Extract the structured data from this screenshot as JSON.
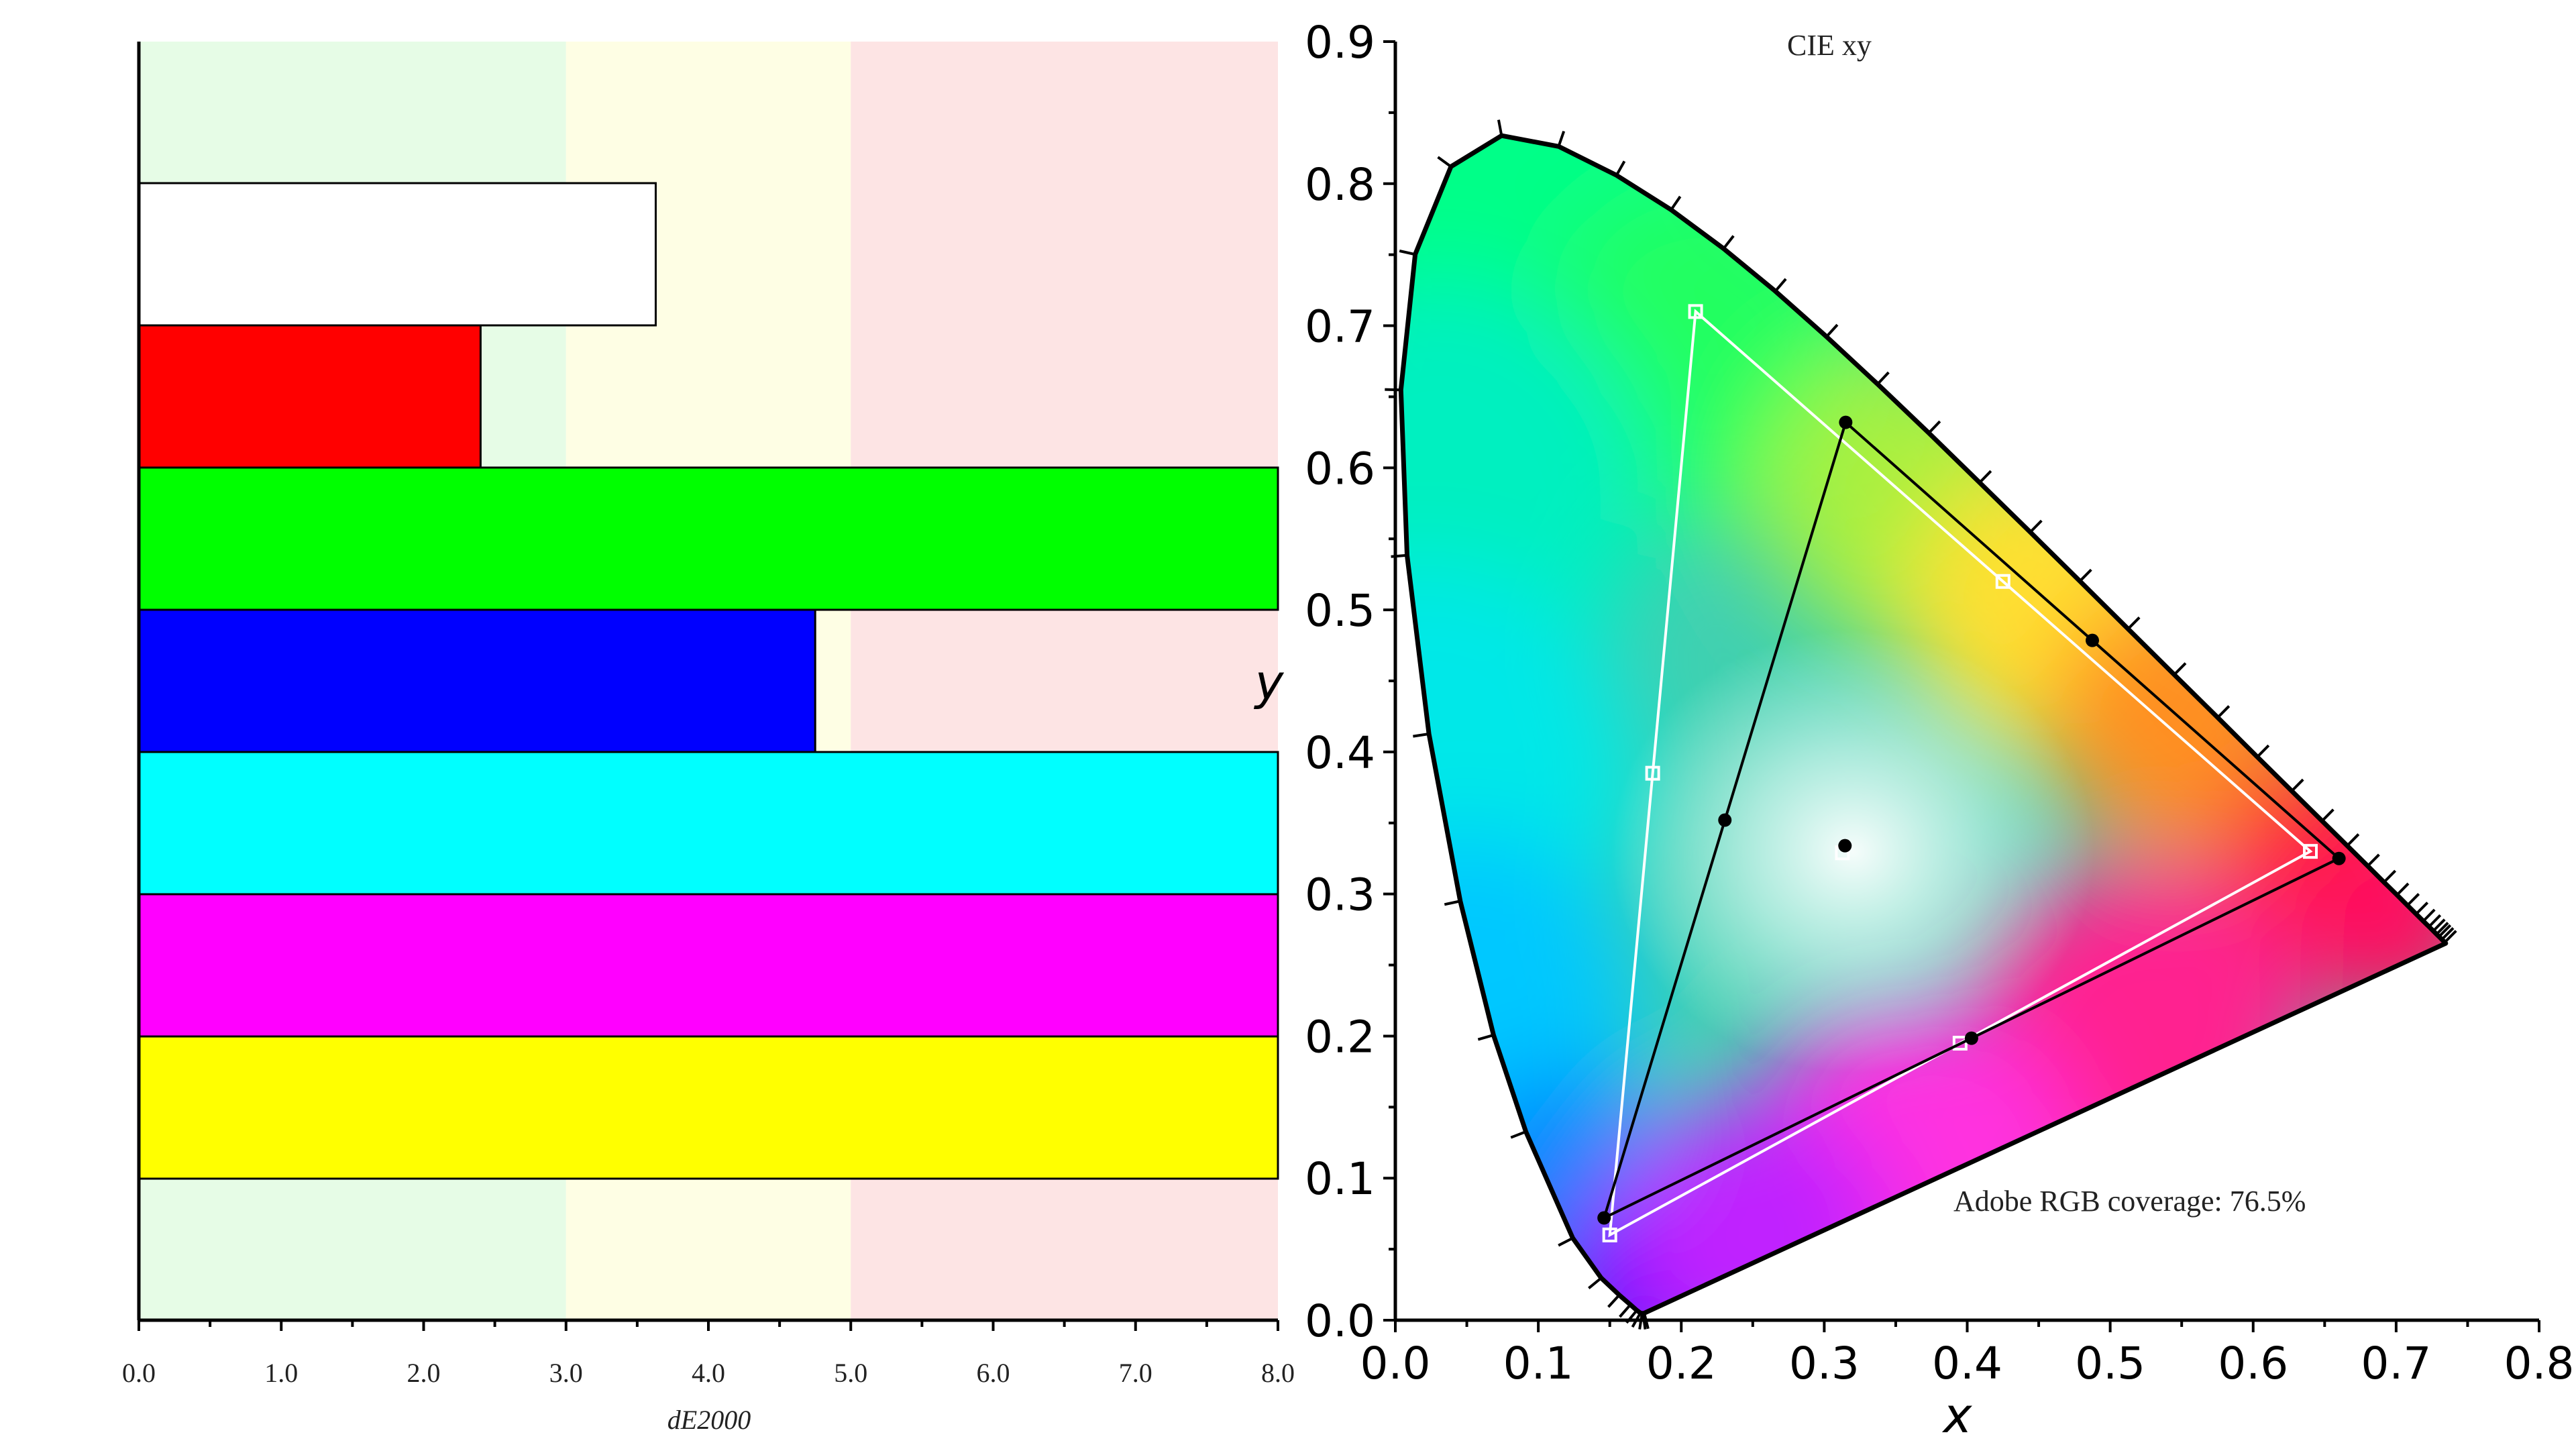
{
  "chart_data": [
    {
      "type": "bar",
      "orientation": "horizontal",
      "xlabel": "dE2000",
      "ylabel": "",
      "xlim": [
        0,
        8
      ],
      "x_ticks": [
        "0.0",
        "1.0",
        "2.0",
        "3.0",
        "4.0",
        "5.0",
        "6.0",
        "7.0",
        "8.0"
      ],
      "x_ticks_values": [
        0,
        1,
        2,
        3,
        4,
        5,
        6,
        7,
        8
      ],
      "zones": [
        {
          "from": 0,
          "to": 3,
          "color": "#e6fce6"
        },
        {
          "from": 3,
          "to": 5,
          "color": "#fefee4"
        },
        {
          "from": 5,
          "to": 8,
          "color": "#fde4e4"
        }
      ],
      "categories": [
        "White",
        "Red",
        "Green",
        "Blue",
        "Cyan",
        "Magenta",
        "Yellow"
      ],
      "values": [
        3.63,
        2.4,
        8.0,
        4.75,
        8.0,
        8.0,
        8.0
      ],
      "bar_colors": [
        "#ffffff",
        "#ff0000",
        "#00ff00",
        "#0000ff",
        "#00ffff",
        "#ff00ff",
        "#ffff00"
      ],
      "grid": false
    },
    {
      "type": "scatter",
      "title": "CIE xy",
      "xlabel": "x",
      "ylabel": "y",
      "xlim": [
        0,
        0.8
      ],
      "ylim": [
        0,
        0.9
      ],
      "x_ticks": [
        "0.0",
        "0.1",
        "0.2",
        "0.3",
        "0.4",
        "0.5",
        "0.6",
        "0.7",
        "0.8"
      ],
      "x_ticks_values": [
        0,
        0.1,
        0.2,
        0.3,
        0.4,
        0.5,
        0.6,
        0.7,
        0.8
      ],
      "y_ticks": [
        "0.0",
        "0.1",
        "0.2",
        "0.3",
        "0.4",
        "0.5",
        "0.6",
        "0.7",
        "0.8",
        "0.9"
      ],
      "y_ticks_values": [
        0,
        0.1,
        0.2,
        0.3,
        0.4,
        0.5,
        0.6,
        0.7,
        0.8,
        0.9
      ],
      "annotation": "Adobe RGB coverage: 76.5%",
      "spectral_locus": [
        [
          0.1741,
          0.005
        ],
        [
          0.1738,
          0.0049
        ],
        [
          0.1733,
          0.0048
        ],
        [
          0.1726,
          0.0048
        ],
        [
          0.1714,
          0.0051
        ],
        [
          0.1689,
          0.0069
        ],
        [
          0.1644,
          0.0109
        ],
        [
          0.1566,
          0.0177
        ],
        [
          0.144,
          0.0297
        ],
        [
          0.1241,
          0.0578
        ],
        [
          0.0913,
          0.1327
        ],
        [
          0.0687,
          0.2007
        ],
        [
          0.0454,
          0.295
        ],
        [
          0.0235,
          0.4127
        ],
        [
          0.0082,
          0.5384
        ],
        [
          0.0039,
          0.6548
        ],
        [
          0.0139,
          0.7502
        ],
        [
          0.0389,
          0.812
        ],
        [
          0.0743,
          0.8338
        ],
        [
          0.1142,
          0.8262
        ],
        [
          0.1547,
          0.8059
        ],
        [
          0.1929,
          0.7816
        ],
        [
          0.2296,
          0.7543
        ],
        [
          0.2658,
          0.7243
        ],
        [
          0.3016,
          0.6923
        ],
        [
          0.3373,
          0.6589
        ],
        [
          0.3731,
          0.6245
        ],
        [
          0.4087,
          0.5896
        ],
        [
          0.4441,
          0.5547
        ],
        [
          0.4788,
          0.5202
        ],
        [
          0.5125,
          0.4866
        ],
        [
          0.5448,
          0.4544
        ],
        [
          0.5752,
          0.4242
        ],
        [
          0.6029,
          0.3965
        ],
        [
          0.627,
          0.3725
        ],
        [
          0.6482,
          0.3514
        ],
        [
          0.6658,
          0.334
        ],
        [
          0.6801,
          0.3197
        ],
        [
          0.6915,
          0.3083
        ],
        [
          0.7006,
          0.2993
        ],
        [
          0.7079,
          0.292
        ],
        [
          0.714,
          0.2859
        ],
        [
          0.719,
          0.2809
        ],
        [
          0.723,
          0.277
        ],
        [
          0.726,
          0.274
        ],
        [
          0.7283,
          0.2717
        ],
        [
          0.73,
          0.27
        ],
        [
          0.7311,
          0.2689
        ],
        [
          0.732,
          0.268
        ],
        [
          0.7327,
          0.2673
        ],
        [
          0.7334,
          0.2666
        ],
        [
          0.734,
          0.266
        ],
        [
          0.7344,
          0.2656
        ],
        [
          0.7346,
          0.2654
        ],
        [
          0.7347,
          0.2653
        ]
      ],
      "locus_tick_points": [
        [
          0.1741,
          0.005
        ],
        [
          0.1733,
          0.0048
        ],
        [
          0.1726,
          0.0048
        ],
        [
          0.1714,
          0.0051
        ],
        [
          0.1689,
          0.0069
        ],
        [
          0.1644,
          0.0109
        ],
        [
          0.1566,
          0.0177
        ],
        [
          0.144,
          0.0297
        ],
        [
          0.1241,
          0.0578
        ],
        [
          0.0913,
          0.1327
        ],
        [
          0.0687,
          0.2007
        ],
        [
          0.0454,
          0.295
        ],
        [
          0.0235,
          0.4127
        ],
        [
          0.0082,
          0.5384
        ],
        [
          0.0039,
          0.6548
        ],
        [
          0.0139,
          0.7502
        ],
        [
          0.0389,
          0.812
        ],
        [
          0.0743,
          0.8338
        ],
        [
          0.1142,
          0.8262
        ],
        [
          0.1547,
          0.8059
        ],
        [
          0.1929,
          0.7816
        ],
        [
          0.2296,
          0.7543
        ],
        [
          0.2658,
          0.7243
        ],
        [
          0.3016,
          0.6923
        ],
        [
          0.3373,
          0.6589
        ],
        [
          0.3731,
          0.6245
        ],
        [
          0.4087,
          0.5896
        ],
        [
          0.4441,
          0.5547
        ],
        [
          0.4788,
          0.5202
        ],
        [
          0.5125,
          0.4866
        ],
        [
          0.5448,
          0.4544
        ],
        [
          0.5752,
          0.4242
        ],
        [
          0.6029,
          0.3965
        ],
        [
          0.627,
          0.3725
        ],
        [
          0.6482,
          0.3514
        ],
        [
          0.6658,
          0.334
        ],
        [
          0.6801,
          0.3197
        ],
        [
          0.6915,
          0.3083
        ],
        [
          0.7006,
          0.2993
        ],
        [
          0.7079,
          0.292
        ],
        [
          0.714,
          0.2859
        ],
        [
          0.719,
          0.2809
        ],
        [
          0.723,
          0.277
        ],
        [
          0.726,
          0.274
        ],
        [
          0.7283,
          0.2717
        ],
        [
          0.73,
          0.27
        ],
        [
          0.732,
          0.268
        ],
        [
          0.734,
          0.266
        ]
      ],
      "series": [
        {
          "points": [
            [
              0.64,
              0.33
            ],
            [
              0.21,
              0.71
            ],
            [
              0.15,
              0.06
            ]
          ],
          "midpoints": [
            [
              0.425,
              0.52
            ],
            [
              0.18,
              0.385
            ],
            [
              0.395,
              0.195
            ]
          ],
          "white_point": [
            0.3127,
            0.329
          ],
          "color": "#ffffff",
          "marker": "square"
        },
        {
          "points": [
            [
              0.66,
              0.325
            ],
            [
              0.315,
              0.632
            ],
            [
              0.146,
              0.072
            ]
          ],
          "midpoints": [
            [
              0.4875,
              0.4785
            ],
            [
              0.2305,
              0.352
            ],
            [
              0.403,
              0.1985
            ]
          ],
          "white_point": [
            0.3145,
            0.334
          ],
          "color": "#000000",
          "marker": "dot"
        }
      ],
      "grid": false
    }
  ]
}
